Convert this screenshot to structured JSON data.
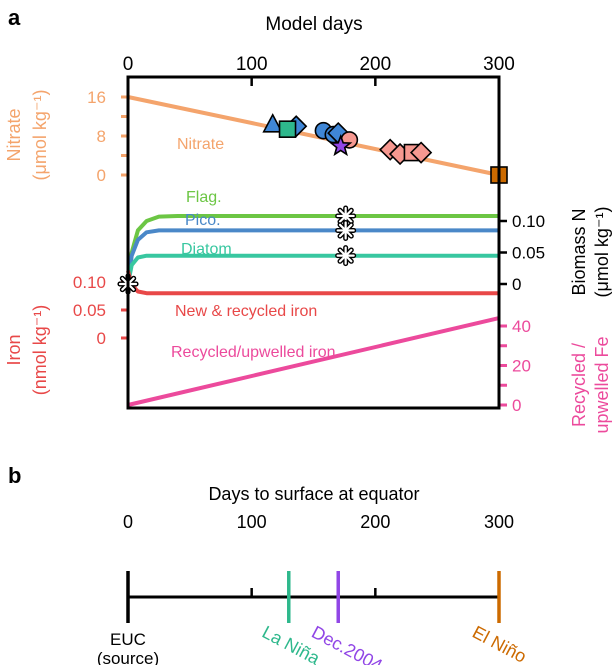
{
  "chart_data": [
    {
      "panel_label": "a",
      "type": "line",
      "top_axis": {
        "label": "Model days",
        "ticks": [
          0,
          100,
          200,
          300
        ],
        "range": [
          0,
          300
        ]
      },
      "nitrate_axis": {
        "label_line1": "Nitrate",
        "label_line2": "(μmol kg⁻¹)",
        "ticks": [
          0,
          8,
          16
        ],
        "range": [
          0,
          16
        ]
      },
      "biomass_axis": {
        "label_line1": "Biomass N",
        "label_line2": "(μmol kg⁻¹)",
        "ticks": [
          "0",
          "0.05",
          "0.10"
        ],
        "range": [
          0,
          0.1
        ]
      },
      "iron_axis": {
        "label_line1": "Iron",
        "label_line2": "(nmol kg⁻¹)",
        "ticks": [
          "0",
          "0.05",
          "0.10"
        ],
        "range": [
          0,
          0.1
        ]
      },
      "recycled_axis": {
        "label_line1": "Recycled /",
        "label_line2": "upwelled Fe",
        "ticks": [
          0,
          20,
          40
        ],
        "range": [
          0,
          40
        ]
      },
      "series": [
        {
          "name": "Nitrate",
          "axis": "nitrate",
          "color": "#F4A46C",
          "x": [
            0,
            300
          ],
          "y": [
            16,
            0
          ]
        },
        {
          "name": "Flag.",
          "axis": "biomass",
          "color": "#6CC644",
          "x": [
            0,
            3,
            8,
            15,
            25,
            40,
            300
          ],
          "y": [
            0,
            0.05,
            0.085,
            0.1,
            0.107,
            0.108,
            0.108
          ]
        },
        {
          "name": "Pico.",
          "axis": "biomass",
          "color": "#4A88C8",
          "x": [
            0,
            3,
            8,
            15,
            25,
            40,
            300
          ],
          "y": [
            0,
            0.045,
            0.07,
            0.082,
            0.085,
            0.085,
            0.085
          ]
        },
        {
          "name": "Diatom",
          "axis": "biomass",
          "color": "#38C7A0",
          "x": [
            0,
            3,
            8,
            15,
            25,
            300
          ],
          "y": [
            0,
            0.03,
            0.042,
            0.045,
            0.045,
            0.045
          ]
        },
        {
          "name": "New & recycled iron",
          "axis": "iron",
          "color": "#E84848",
          "x": [
            0,
            3,
            8,
            15,
            25,
            300
          ],
          "y": [
            0.12,
            0.095,
            0.083,
            0.08,
            0.08,
            0.08
          ]
        },
        {
          "name": "Recycled/upwelled iron",
          "axis": "recycled",
          "color": "#EC4A9C",
          "x": [
            0,
            300
          ],
          "y": [
            0,
            44
          ]
        }
      ],
      "observation_markers": [
        {
          "shape": "triangle",
          "color": "#3F86D6",
          "day": 117,
          "nitrate": 10.3
        },
        {
          "shape": "diamond",
          "color": "#3F86D6",
          "day": 136,
          "nitrate": 10.0
        },
        {
          "shape": "square",
          "color": "#2EB88C",
          "day": 129,
          "nitrate": 9.4
        },
        {
          "shape": "circle",
          "color": "#3F86D6",
          "day": 158,
          "nitrate": 9.1
        },
        {
          "shape": "circle",
          "color": "#3F86D6",
          "day": 166,
          "nitrate": 8.3
        },
        {
          "shape": "diamond",
          "color": "#3F86D6",
          "day": 170,
          "nitrate": 8.6
        },
        {
          "shape": "circle",
          "color": "#F69890",
          "day": 179,
          "nitrate": 7.2
        },
        {
          "shape": "star",
          "color": "#9146E6",
          "day": 172,
          "nitrate": 5.9
        },
        {
          "shape": "diamond",
          "color": "#F69890",
          "day": 212,
          "nitrate": 5.2
        },
        {
          "shape": "diamond",
          "color": "#F69890",
          "day": 220,
          "nitrate": 4.3
        },
        {
          "shape": "square",
          "color": "#F69890",
          "day": 230,
          "nitrate": 4.6
        },
        {
          "shape": "diamond",
          "color": "#F69890",
          "day": 237,
          "nitrate": 4.6
        },
        {
          "shape": "square",
          "color": "#CC6A00",
          "day": 300,
          "nitrate": 0
        }
      ],
      "cross_markers": [
        {
          "day": 176,
          "axis": "biomass",
          "value": 0.108
        },
        {
          "day": 176,
          "axis": "biomass",
          "value": 0.085
        },
        {
          "day": 176,
          "axis": "biomass",
          "value": 0.045
        },
        {
          "day": 0,
          "axis": "biomass",
          "value": 0.0
        },
        {
          "day": 0,
          "axis": "biomass",
          "value": 0.0
        }
      ]
    },
    {
      "panel_label": "b",
      "type": "timeline",
      "title": "Days to surface at equator",
      "ticks": [
        0,
        100,
        200,
        300
      ],
      "range": [
        0,
        300
      ],
      "events": [
        {
          "line1": "EUC",
          "line2": "(source)",
          "day": 0,
          "color": "#000000"
        },
        {
          "line1": "La Niña",
          "day": 130,
          "color": "#2EB88C"
        },
        {
          "line1": "Dec.2004",
          "day": 170,
          "color": "#9146E6"
        },
        {
          "line1": "El Niño",
          "day": 300,
          "color": "#CC6A00"
        }
      ]
    }
  ]
}
